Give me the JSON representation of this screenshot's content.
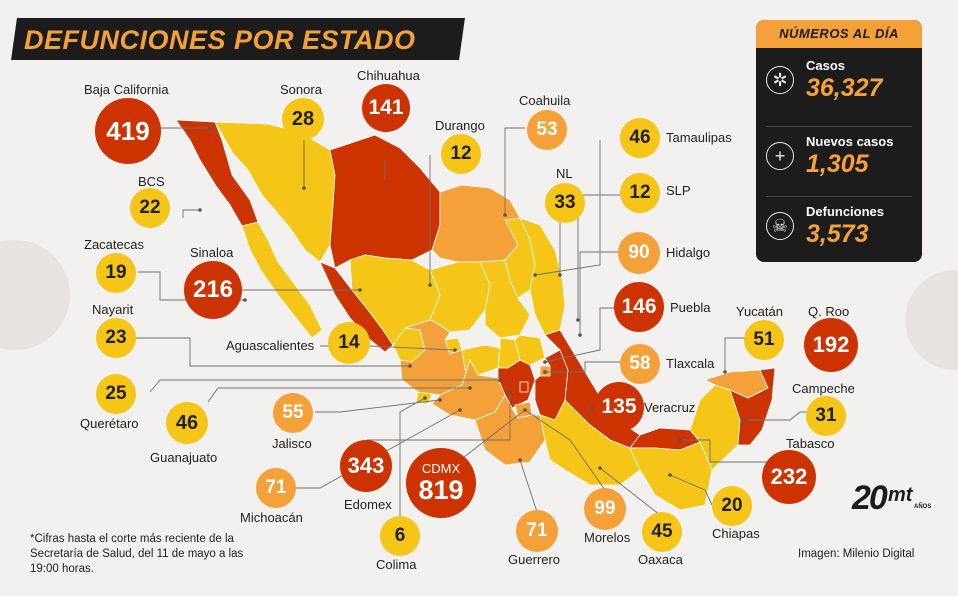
{
  "title": "DEFUNCIONES POR ESTADO",
  "colors": {
    "low": "#f5c518",
    "mid": "#f4a13a",
    "high": "#cc3300",
    "panel": "#1c1c1c",
    "accent": "#f4a13a",
    "background": "#f3f1ef"
  },
  "panel": {
    "header": "NÚMEROS AL DÍA",
    "stats": [
      {
        "label": "Casos",
        "value": "36,327",
        "icon": "virus-icon"
      },
      {
        "label": "Nuevos casos",
        "value": "1,305",
        "icon": "plus-icon"
      },
      {
        "label": "Defunciones",
        "value": "3,573",
        "icon": "skull-icon"
      }
    ]
  },
  "states": {
    "baja_california": {
      "label": "Baja California",
      "value": "419",
      "level": "high"
    },
    "sonora": {
      "label": "Sonora",
      "value": "28",
      "level": "low"
    },
    "chihuahua": {
      "label": "Chihuahua",
      "value": "141",
      "level": "high"
    },
    "durango": {
      "label": "Durango",
      "value": "12",
      "level": "low"
    },
    "coahuila": {
      "label": "Coahuila",
      "value": "53",
      "level": "mid"
    },
    "tamaulipas": {
      "label": "Tamaulipas",
      "value": "46",
      "level": "low"
    },
    "bcs": {
      "label": "BCS",
      "value": "22",
      "level": "low"
    },
    "nl": {
      "label": "NL",
      "value": "33",
      "level": "low"
    },
    "slp": {
      "label": "SLP",
      "value": "12",
      "level": "low"
    },
    "zacatecas": {
      "label": "Zacatecas",
      "value": "19",
      "level": "low"
    },
    "sinaloa": {
      "label": "Sinaloa",
      "value": "216",
      "level": "high"
    },
    "hidalgo": {
      "label": "Hidalgo",
      "value": "90",
      "level": "mid"
    },
    "nayarit": {
      "label": "Nayarit",
      "value": "23",
      "level": "low"
    },
    "aguascalientes": {
      "label": "Aguascalientes",
      "value": "14",
      "level": "low"
    },
    "puebla": {
      "label": "Puebla",
      "value": "146",
      "level": "high"
    },
    "yucatan": {
      "label": "Yucatán",
      "value": "51",
      "level": "low"
    },
    "quintana_roo": {
      "label": "Q. Roo",
      "value": "192",
      "level": "high"
    },
    "queretaro": {
      "label": "Querétaro",
      "value": "25",
      "level": "low"
    },
    "tlaxcala": {
      "label": "Tlaxcala",
      "value": "58",
      "level": "mid"
    },
    "campeche": {
      "label": "Campeche",
      "value": "31",
      "level": "low"
    },
    "guanajuato": {
      "label": "Guanajuato",
      "value": "46",
      "level": "low"
    },
    "jalisco": {
      "label": "Jalisco",
      "value": "55",
      "level": "mid"
    },
    "veracruz": {
      "label": "Veracruz",
      "value": "135",
      "level": "high"
    },
    "tabasco": {
      "label": "Tabasco",
      "value": "232",
      "level": "high"
    },
    "michoacan": {
      "label": "Michoacán",
      "value": "71",
      "level": "mid"
    },
    "edomex": {
      "label": "Edomex",
      "value": "343",
      "level": "high"
    },
    "cdmx": {
      "label": "CDMX",
      "value": "819",
      "level": "high"
    },
    "colima": {
      "label": "Colima",
      "value": "6",
      "level": "low"
    },
    "guerrero": {
      "label": "Guerrero",
      "value": "71",
      "level": "mid"
    },
    "morelos": {
      "label": "Morelos",
      "value": "99",
      "level": "mid"
    },
    "oaxaca": {
      "label": "Oaxaca",
      "value": "45",
      "level": "low"
    },
    "chiapas": {
      "label": "Chiapas",
      "value": "20",
      "level": "low"
    }
  },
  "footnote": "*Cifras hasta el corte más reciente de la Secretaría de Salud, del 11 de mayo a las 19:00 horas.",
  "credit": "Imagen: Milenio Digital",
  "logo": {
    "number": "20",
    "brand": "mt",
    "tagline": "AÑOS"
  }
}
